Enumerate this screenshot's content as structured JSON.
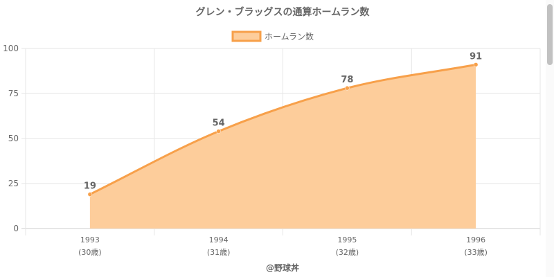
{
  "chart_data": {
    "type": "area",
    "title": "グレン・ブラッグスの通算ホームラン数",
    "legend": {
      "label": "ホームラン数",
      "position": "top"
    },
    "categories": [
      "1993",
      "1994",
      "1995",
      "1996"
    ],
    "ages": [
      "(30歳)",
      "(31歳)",
      "(32歳)",
      "(33歳)"
    ],
    "series": [
      {
        "name": "ホームラン数",
        "values": [
          19,
          54,
          78,
          91
        ]
      }
    ],
    "ylim": [
      0,
      100
    ],
    "yticks": [
      0,
      25,
      50,
      75,
      100
    ],
    "grid": true,
    "xlabel": "@野球丼",
    "colors": {
      "line": "#f7a04a",
      "fill": "#fdcd9b",
      "text": "#666666",
      "grid": "#e6e6e6"
    }
  }
}
